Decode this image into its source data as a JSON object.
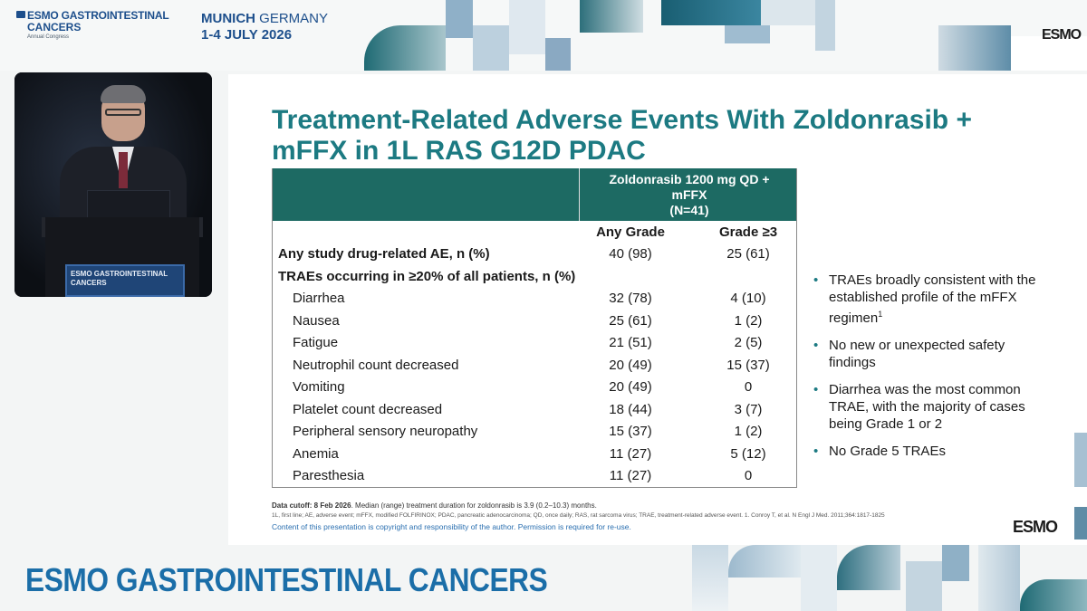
{
  "header": {
    "logo_line1": "ESMO GASTROINTESTINAL",
    "logo_line2": "CANCERS",
    "logo_line3": "Annual Congress",
    "city_bold": "MUNICH",
    "city_rest": " GERMANY",
    "dates": "1-4 JULY 2026",
    "esmo_logo": "ESMO"
  },
  "video": {
    "podium_line1": "ESMO GASTROINTESTINAL",
    "podium_line2": "CANCERS"
  },
  "slide": {
    "title": "Treatment-Related Adverse Events With Zoldonrasib + mFFX in 1L RAS G12D PDAC",
    "table": {
      "header_group": [
        "Zoldonrasib 1200 mg QD +",
        "mFFX",
        "(N=41)"
      ],
      "col_any": "Any Grade",
      "col_g3": "Grade ≥3",
      "rows": [
        {
          "label": "Any study drug-related AE, n (%)",
          "any": "40 (98)",
          "g3": "25 (61)"
        },
        {
          "label": "TRAEs occurring in ≥20% of all patients, n (%)",
          "any": "",
          "g3": ""
        },
        {
          "label": "Diarrhea",
          "any": "32 (78)",
          "g3": "4 (10)"
        },
        {
          "label": "Nausea",
          "any": "25 (61)",
          "g3": "1 (2)"
        },
        {
          "label": "Fatigue",
          "any": "21 (51)",
          "g3": "2 (5)"
        },
        {
          "label": "Neutrophil count decreased",
          "any": "20 (49)",
          "g3": "15 (37)"
        },
        {
          "label": "Vomiting",
          "any": "20 (49)",
          "g3": "0"
        },
        {
          "label": "Platelet count decreased",
          "any": "18 (44)",
          "g3": "3 (7)"
        },
        {
          "label": "Peripheral sensory neuropathy",
          "any": "15 (37)",
          "g3": "1 (2)"
        },
        {
          "label": "Anemia",
          "any": "11 (27)",
          "g3": "5 (12)"
        },
        {
          "label": "Paresthesia",
          "any": "11 (27)",
          "g3": "0"
        }
      ]
    },
    "bullets": [
      {
        "text": "TRAEs broadly consistent with the established profile of the mFFX regimen",
        "sup": "1"
      },
      {
        "text": "No new or unexpected safety findings",
        "sup": ""
      },
      {
        "text": "Diarrhea was the most common TRAE, with the majority of cases being Grade 1 or 2",
        "sup": ""
      },
      {
        "text": "No Grade 5 TRAEs",
        "sup": ""
      }
    ],
    "footnote_label": "Data cutoff: 8 Feb 2026",
    "footnote_rest": ". Median (range) treatment duration for zoldonrasib is 3.9 (0.2–10.3) months.",
    "abbreviations": "1L, first line; AE, adverse event; mFFX, modified FOLFIRINOX; PDAC, pancreatic adenocarcinoma; QD, once daily; RAS, rat sarcoma virus; TRAE, treatment-related adverse event. 1. Conroy T, et al. N Engl J Med. 2011;364:1817-1825",
    "copyright": "Content of this presentation is copyright and responsibility of the author. Permission is required for re-use.",
    "esmo_logo": "ESMO"
  },
  "bottom_title": "ESMO GASTROINTESTINAL CANCERS",
  "colors": {
    "title_teal": "#1c7a82",
    "table_header": "#1d6a63",
    "brand_blue": "#1d4f8c"
  }
}
